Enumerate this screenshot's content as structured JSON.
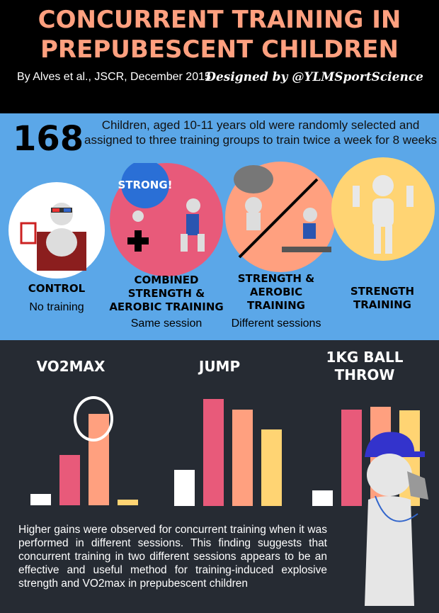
{
  "header": {
    "title_line1": "Concurrent Training in",
    "title_line2": "Prepubescent Children",
    "byline": "By Alves et al., JSCR, December 2015",
    "designed_by": "Designed by @YLMSportScience"
  },
  "intro": {
    "count": "168",
    "text": "Children, aged 10-11 years old were randomly selected and assigned to three training groups to train twice a week for 8 weeks"
  },
  "groups": [
    {
      "name": "Control",
      "sub": "No training",
      "color": "#ffffff",
      "icon": "figure-watching-3d-movie-icon"
    },
    {
      "name": "Combined Strength & Aerobic Training",
      "sub": "Same session",
      "color": "#e85a7a",
      "icon": "figure-pushing-strong-ball-plus-runner-icon",
      "ball_label": "STRONG!"
    },
    {
      "name": "Strength & Aerobic Training",
      "sub": "Different sessions",
      "color": "#ffa07f",
      "icon": "figure-lifting-rock-slash-treadmill-runner-icon"
    },
    {
      "name": "Strength Training",
      "sub": "",
      "color": "#ffd473",
      "icon": "figure-flexing-muscles-icon"
    }
  ],
  "chart_data": [
    {
      "type": "bar",
      "title": "VO2max",
      "categories": [
        "Control",
        "Combined same session",
        "Different sessions",
        "Strength"
      ],
      "values": [
        16,
        71,
        129,
        8
      ],
      "highlight": "Different sessions"
    },
    {
      "type": "bar",
      "title": "Jump",
      "categories": [
        "Control",
        "Combined same session",
        "Different sessions",
        "Strength"
      ],
      "values": [
        51,
        151,
        136,
        108
      ]
    },
    {
      "type": "bar",
      "title": "1kg Ball Throw",
      "categories": [
        "Control",
        "Combined same session",
        "Different sessions",
        "Strength"
      ],
      "values": [
        22,
        136,
        140,
        135
      ]
    }
  ],
  "colors": {
    "control": "#ffffff",
    "combined": "#e85a7a",
    "different": "#ffa07f",
    "strength": "#ffd473",
    "background": "#262b33",
    "blue_band": "#5ba7e8",
    "title": "#ffa07f"
  },
  "summary": "Higher gains were observed for concurrent training when it was performed in different sessions. This finding suggests that concurrent training in two different sessions appears to be an effective and useful method for training-induced explosive strength and VO2max in prepubescent children"
}
